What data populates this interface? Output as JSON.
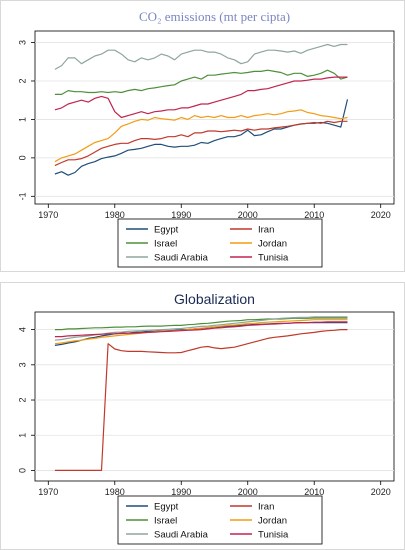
{
  "chart_data": [
    {
      "type": "line",
      "title": "CO₂ emissions (mt per cipta)",
      "xlim": [
        1968,
        2022
      ],
      "ylim": [
        -1.2,
        3.3
      ],
      "xticks": [
        1970,
        1980,
        1990,
        2000,
        2010,
        2020
      ],
      "yticks": [
        -1,
        0,
        1,
        2,
        3
      ],
      "grid": true,
      "legend_position": "bottom",
      "x": [
        1971,
        1972,
        1973,
        1974,
        1975,
        1976,
        1977,
        1978,
        1979,
        1980,
        1981,
        1982,
        1983,
        1984,
        1985,
        1986,
        1987,
        1988,
        1989,
        1990,
        1991,
        1992,
        1993,
        1994,
        1995,
        1996,
        1997,
        1998,
        1999,
        2000,
        2001,
        2002,
        2003,
        2004,
        2005,
        2006,
        2007,
        2008,
        2009,
        2010,
        2011,
        2012,
        2013,
        2014,
        2015
      ],
      "series": [
        {
          "name": "Egypt",
          "color": "#1f4e79",
          "values": [
            -0.42,
            -0.36,
            -0.45,
            -0.38,
            -0.22,
            -0.15,
            -0.1,
            -0.02,
            0.02,
            0.05,
            0.12,
            0.2,
            0.22,
            0.25,
            0.3,
            0.35,
            0.35,
            0.3,
            0.28,
            0.3,
            0.3,
            0.33,
            0.4,
            0.38,
            0.45,
            0.5,
            0.55,
            0.55,
            0.6,
            0.72,
            0.58,
            0.6,
            0.68,
            0.75,
            0.75,
            0.8,
            0.85,
            0.88,
            0.9,
            0.9,
            0.92,
            0.9,
            0.85,
            0.8,
            1.52
          ]
        },
        {
          "name": "Iran",
          "color": "#c0392b",
          "values": [
            -0.2,
            -0.12,
            -0.05,
            -0.05,
            -0.02,
            0.05,
            0.15,
            0.25,
            0.3,
            0.35,
            0.38,
            0.38,
            0.45,
            0.5,
            0.5,
            0.48,
            0.5,
            0.55,
            0.55,
            0.6,
            0.55,
            0.65,
            0.65,
            0.7,
            0.7,
            0.68,
            0.7,
            0.72,
            0.7,
            0.75,
            0.72,
            0.75,
            0.75,
            0.78,
            0.8,
            0.82,
            0.85,
            0.88,
            0.9,
            0.92,
            0.9,
            0.95,
            0.92,
            0.95,
            0.95
          ]
        },
        {
          "name": "Israel",
          "color": "#4f8f3a",
          "values": [
            1.65,
            1.65,
            1.75,
            1.72,
            1.72,
            1.7,
            1.7,
            1.72,
            1.7,
            1.72,
            1.7,
            1.75,
            1.78,
            1.75,
            1.8,
            1.82,
            1.85,
            1.88,
            1.9,
            2.0,
            2.05,
            2.1,
            2.05,
            2.15,
            2.15,
            2.18,
            2.2,
            2.22,
            2.2,
            2.22,
            2.25,
            2.25,
            2.28,
            2.25,
            2.22,
            2.15,
            2.2,
            2.2,
            2.12,
            2.15,
            2.2,
            2.28,
            2.2,
            2.05,
            2.1
          ]
        },
        {
          "name": "Jordan",
          "color": "#f39c12",
          "values": [
            -0.1,
            0.0,
            0.05,
            0.1,
            0.2,
            0.3,
            0.4,
            0.45,
            0.5,
            0.65,
            0.82,
            0.88,
            0.95,
            1.0,
            0.98,
            1.05,
            1.02,
            1.0,
            0.98,
            1.05,
            1.0,
            1.1,
            1.05,
            1.08,
            1.05,
            1.1,
            1.05,
            1.05,
            1.1,
            1.05,
            1.1,
            1.12,
            1.15,
            1.12,
            1.15,
            1.2,
            1.22,
            1.25,
            1.18,
            1.15,
            1.1,
            1.08,
            1.05,
            1.02,
            1.05
          ]
        },
        {
          "name": "Saudi Arabia",
          "color": "#8fa69b",
          "values": [
            2.3,
            2.4,
            2.6,
            2.6,
            2.45,
            2.55,
            2.65,
            2.7,
            2.8,
            2.8,
            2.7,
            2.55,
            2.5,
            2.6,
            2.55,
            2.6,
            2.7,
            2.65,
            2.55,
            2.7,
            2.75,
            2.8,
            2.8,
            2.75,
            2.75,
            2.7,
            2.6,
            2.55,
            2.45,
            2.5,
            2.7,
            2.75,
            2.8,
            2.8,
            2.78,
            2.75,
            2.78,
            2.72,
            2.8,
            2.85,
            2.9,
            2.95,
            2.9,
            2.95,
            2.95
          ]
        },
        {
          "name": "Tunisia",
          "color": "#c0254e",
          "values": [
            1.25,
            1.3,
            1.4,
            1.45,
            1.5,
            1.45,
            1.55,
            1.6,
            1.55,
            1.2,
            1.05,
            1.1,
            1.15,
            1.2,
            1.15,
            1.2,
            1.22,
            1.25,
            1.25,
            1.3,
            1.3,
            1.35,
            1.4,
            1.4,
            1.45,
            1.5,
            1.55,
            1.6,
            1.65,
            1.75,
            1.75,
            1.78,
            1.8,
            1.85,
            1.9,
            1.95,
            2.0,
            2.0,
            2.02,
            2.05,
            2.05,
            2.08,
            2.1,
            2.1,
            2.1
          ]
        }
      ]
    },
    {
      "type": "line",
      "title": "Globalization",
      "xlim": [
        1968,
        2022
      ],
      "ylim": [
        -0.3,
        4.5
      ],
      "xticks": [
        1970,
        1980,
        1990,
        2000,
        2010,
        2020
      ],
      "yticks": [
        0,
        1,
        2,
        3,
        4
      ],
      "grid": true,
      "legend_position": "bottom",
      "x": [
        1971,
        1972,
        1973,
        1974,
        1975,
        1976,
        1977,
        1978,
        1979,
        1980,
        1981,
        1982,
        1983,
        1984,
        1985,
        1986,
        1987,
        1988,
        1989,
        1990,
        1991,
        1992,
        1993,
        1994,
        1995,
        1996,
        1997,
        1998,
        1999,
        2000,
        2001,
        2002,
        2003,
        2004,
        2005,
        2006,
        2007,
        2008,
        2009,
        2010,
        2011,
        2012,
        2013,
        2014,
        2015
      ],
      "series": [
        {
          "name": "Egypt",
          "color": "#1f4e79",
          "values": [
            3.55,
            3.58,
            3.62,
            3.65,
            3.7,
            3.75,
            3.78,
            3.82,
            3.85,
            3.88,
            3.9,
            3.9,
            3.92,
            3.93,
            3.95,
            3.95,
            3.96,
            3.97,
            3.98,
            4.0,
            4.0,
            4.02,
            4.03,
            4.05,
            4.07,
            4.08,
            4.1,
            4.1,
            4.12,
            4.13,
            4.15,
            4.15,
            4.16,
            4.17,
            4.18,
            4.18,
            4.19,
            4.2,
            4.2,
            4.2,
            4.2,
            4.2,
            4.2,
            4.2,
            4.2
          ]
        },
        {
          "name": "Iran",
          "color": "#c0392b",
          "values": [
            0,
            0,
            0,
            0,
            0,
            0,
            0,
            0,
            3.6,
            3.45,
            3.4,
            3.38,
            3.38,
            3.38,
            3.37,
            3.36,
            3.35,
            3.34,
            3.34,
            3.35,
            3.4,
            3.45,
            3.5,
            3.52,
            3.48,
            3.46,
            3.48,
            3.5,
            3.55,
            3.6,
            3.65,
            3.7,
            3.75,
            3.78,
            3.8,
            3.82,
            3.85,
            3.88,
            3.9,
            3.92,
            3.95,
            3.97,
            3.98,
            4.0,
            4.0
          ]
        },
        {
          "name": "Israel",
          "color": "#4f8f3a",
          "values": [
            4.0,
            4.0,
            4.02,
            4.02,
            4.03,
            4.04,
            4.05,
            4.05,
            4.06,
            4.07,
            4.07,
            4.08,
            4.08,
            4.09,
            4.1,
            4.1,
            4.1,
            4.11,
            4.12,
            4.12,
            4.14,
            4.15,
            4.17,
            4.18,
            4.2,
            4.22,
            4.24,
            4.25,
            4.26,
            4.28,
            4.28,
            4.29,
            4.3,
            4.3,
            4.3,
            4.31,
            4.32,
            4.32,
            4.32,
            4.33,
            4.33,
            4.33,
            4.33,
            4.33,
            4.33
          ]
        },
        {
          "name": "Jordan",
          "color": "#f39c12",
          "values": [
            3.6,
            3.62,
            3.65,
            3.68,
            3.7,
            3.73,
            3.75,
            3.78,
            3.8,
            3.82,
            3.84,
            3.86,
            3.88,
            3.9,
            3.92,
            3.94,
            3.95,
            3.96,
            3.97,
            3.98,
            4.0,
            4.02,
            4.04,
            4.06,
            4.08,
            4.1,
            4.12,
            4.13,
            4.15,
            4.17,
            4.18,
            4.2,
            4.21,
            4.22,
            4.23,
            4.24,
            4.25,
            4.26,
            4.27,
            4.28,
            4.28,
            4.28,
            4.28,
            4.28,
            4.28
          ]
        },
        {
          "name": "Saudi Arabia",
          "color": "#8fa69b",
          "values": [
            3.7,
            3.72,
            3.75,
            3.78,
            3.8,
            3.82,
            3.85,
            3.87,
            3.9,
            3.92,
            3.93,
            3.95,
            3.96,
            3.97,
            3.98,
            3.99,
            4.0,
            4.01,
            4.02,
            4.03,
            4.05,
            4.07,
            4.09,
            4.1,
            4.12,
            4.14,
            4.16,
            4.18,
            4.2,
            4.22,
            4.24,
            4.26,
            4.28,
            4.3,
            4.32,
            4.33,
            4.34,
            4.35,
            4.35,
            4.36,
            4.36,
            4.36,
            4.36,
            4.36,
            4.36
          ]
        },
        {
          "name": "Tunisia",
          "color": "#c0254e",
          "values": [
            3.8,
            3.8,
            3.82,
            3.83,
            3.84,
            3.85,
            3.86,
            3.87,
            3.88,
            3.88,
            3.89,
            3.9,
            3.9,
            3.91,
            3.92,
            3.93,
            3.94,
            3.95,
            3.96,
            3.97,
            3.98,
            3.99,
            4.0,
            4.02,
            4.04,
            4.05,
            4.07,
            4.08,
            4.1,
            4.12,
            4.13,
            4.14,
            4.15,
            4.16,
            4.17,
            4.18,
            4.19,
            4.2,
            4.2,
            4.21,
            4.21,
            4.22,
            4.22,
            4.22,
            4.22
          ]
        }
      ]
    }
  ]
}
